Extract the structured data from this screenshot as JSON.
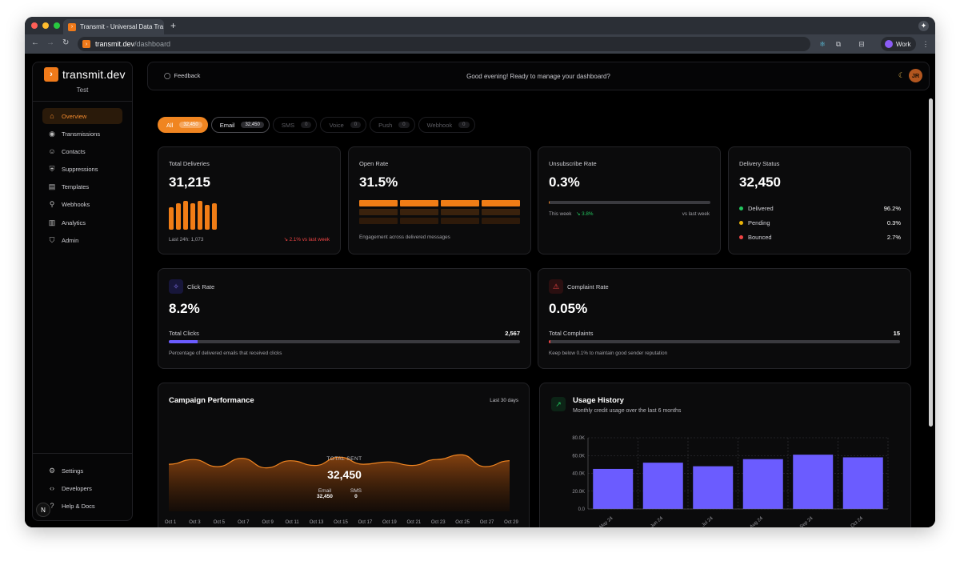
{
  "browser": {
    "tab_title": "Transmit - Universal Data Tra",
    "url_host": "transmit.dev",
    "url_path": "/dashboard",
    "profile": "Work"
  },
  "sidebar": {
    "brand": "transmit.dev",
    "workspace": "Test",
    "items": [
      {
        "label": "Overview",
        "icon": "home-icon",
        "glyph": "⌂"
      },
      {
        "label": "Transmissions",
        "icon": "broadcast-icon",
        "glyph": "◉"
      },
      {
        "label": "Contacts",
        "icon": "user-plus-icon",
        "glyph": "☺"
      },
      {
        "label": "Suppressions",
        "icon": "shield-x-icon",
        "glyph": "⛨"
      },
      {
        "label": "Templates",
        "icon": "file-icon",
        "glyph": "▤"
      },
      {
        "label": "Webhooks",
        "icon": "webhook-icon",
        "glyph": "⚲"
      },
      {
        "label": "Analytics",
        "icon": "bar-chart-icon",
        "glyph": "▥"
      },
      {
        "label": "Admin",
        "icon": "shield-icon",
        "glyph": "⛉"
      }
    ],
    "bottom_items": [
      {
        "label": "Settings",
        "icon": "gear-icon",
        "glyph": "⚙"
      },
      {
        "label": "Developers",
        "icon": "code-icon",
        "glyph": "‹›"
      },
      {
        "label": "Help & Docs",
        "icon": "help-icon",
        "glyph": "?"
      }
    ],
    "badge": "N"
  },
  "header": {
    "feedback": "Feedback",
    "greeting": "Good evening! Ready to manage your dashboard?",
    "avatar": "JR"
  },
  "filters": [
    {
      "label": "All",
      "count": "32,450"
    },
    {
      "label": "Email",
      "count": "32,450"
    },
    {
      "label": "SMS",
      "count": "0"
    },
    {
      "label": "Voice",
      "count": "0"
    },
    {
      "label": "Push",
      "count": "0"
    },
    {
      "label": "Webhook",
      "count": "0"
    }
  ],
  "total_deliveries": {
    "label": "Total Deliveries",
    "value": "31,215",
    "footer": "Last 24h: 1,073",
    "change": "↘ 2.1% vs last week"
  },
  "open_rate": {
    "label": "Open Rate",
    "value": "31.5%",
    "footer": "Engagement across delivered messages"
  },
  "unsubscribe_rate": {
    "label": "Unsubscribe Rate",
    "value": "0.3%",
    "this_week": "This week",
    "change": "↘ 3.8%",
    "vs": "vs last week"
  },
  "delivery_status": {
    "label": "Delivery Status",
    "value": "32,450",
    "rows": [
      {
        "label": "Delivered",
        "value": "96.2%",
        "color": "#22c55e"
      },
      {
        "label": "Pending",
        "value": "0.3%",
        "color": "#eab308"
      },
      {
        "label": "Bounced",
        "value": "2.7%",
        "color": "#ef4444"
      }
    ]
  },
  "click_rate": {
    "label": "Click Rate",
    "value": "8.2%",
    "sub_label": "Total Clicks",
    "sub_value": "2,567",
    "footer": "Percentage of delivered emails that received clicks",
    "fill": 0.082
  },
  "complaint_rate": {
    "label": "Complaint Rate",
    "value": "0.05%",
    "sub_label": "Total Complaints",
    "sub_value": "15",
    "footer": "Keep below 0.1% to maintain good sender reputation",
    "fill": 0.0005
  },
  "campaign": {
    "title": "Campaign Performance",
    "range": "Last 30 days",
    "total_label": "TOTAL SENT",
    "total_value": "32,450",
    "breakdown": [
      {
        "label": "Email",
        "value": "32,450"
      },
      {
        "label": "SMS",
        "value": "0"
      }
    ]
  },
  "usage": {
    "title": "Usage History",
    "subtitle": "Monthly credit usage over the last 6 months"
  },
  "chart_data": [
    {
      "type": "area",
      "title": "Campaign Performance",
      "x": [
        "Oct 1",
        "Oct 3",
        "Oct 5",
        "Oct 7",
        "Oct 9",
        "Oct 11",
        "Oct 13",
        "Oct 15",
        "Oct 17",
        "Oct 19",
        "Oct 21",
        "Oct 23",
        "Oct 25",
        "Oct 27",
        "Oct 29"
      ],
      "series": [
        {
          "values": [
            0.55,
            0.75,
            0.45,
            0.8,
            0.4,
            0.7,
            0.5,
            0.85,
            0.55,
            0.65,
            0.5,
            0.75,
            0.95,
            0.45,
            0.7
          ]
        }
      ],
      "grid": false
    },
    {
      "type": "bar",
      "title": "Usage History",
      "categories": [
        "May 24",
        "Jun 24",
        "Jul 24",
        "Aug 24",
        "Sep 24",
        "Oct 24"
      ],
      "values": [
        45000,
        52000,
        48000,
        56000,
        61000,
        58000
      ],
      "yticks": [
        "0.0",
        "20.0K",
        "40.0K",
        "60.0K",
        "80.0K"
      ],
      "ylim": [
        0,
        80000
      ],
      "bar_color": "#6b5cff",
      "grid": true
    }
  ]
}
